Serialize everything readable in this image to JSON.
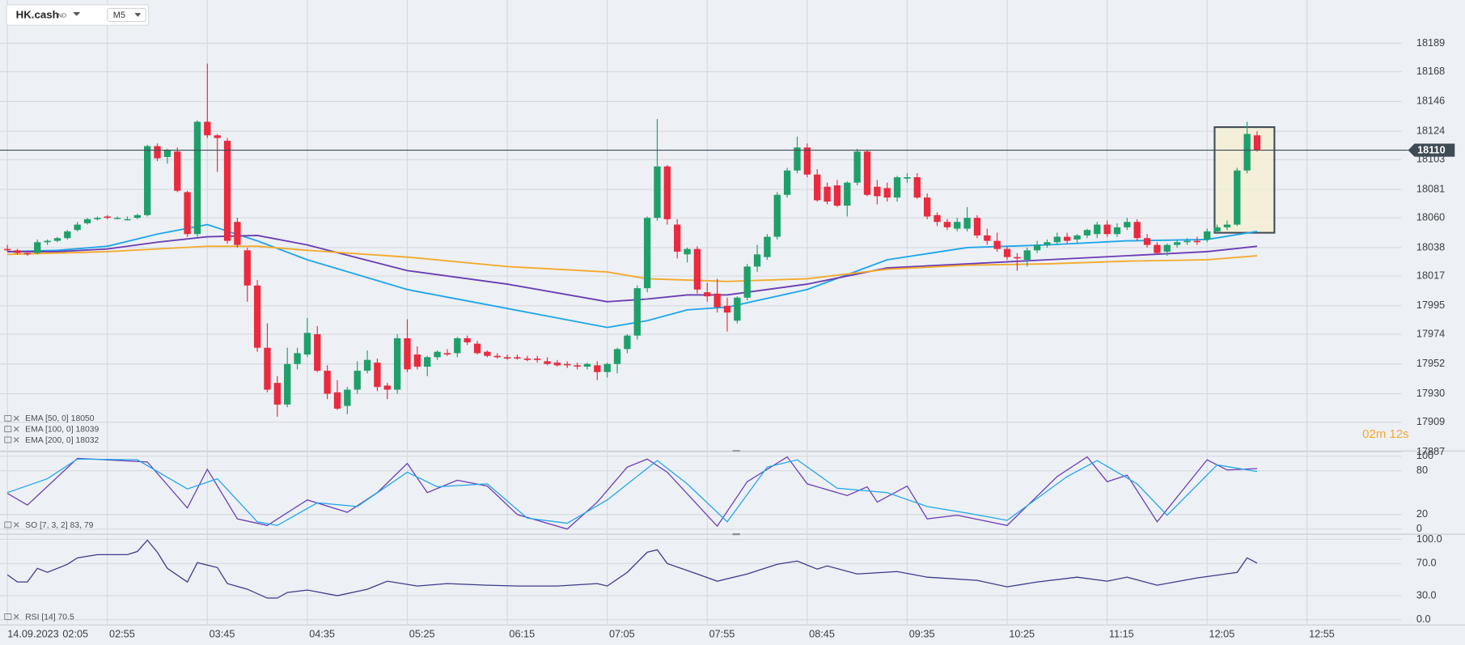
{
  "header": {
    "symbol": "HK.cash",
    "market": "IND",
    "timeframe": "M5"
  },
  "countdown": "02m 12s",
  "chart_data": [
    {
      "type": "candlestick",
      "date": "14.09.2023",
      "x": [
        125,
        130,
        135,
        140,
        145,
        150,
        155,
        160,
        165,
        170,
        175,
        180,
        185,
        190,
        195,
        200,
        205,
        210,
        215,
        220,
        225,
        230,
        235,
        240,
        245,
        250,
        255,
        260,
        265,
        270,
        275,
        280,
        285,
        290,
        295,
        300,
        305,
        310,
        315,
        320,
        325,
        330,
        335,
        340,
        345,
        350,
        355,
        360,
        365,
        370,
        375,
        380,
        385,
        390,
        395,
        400,
        405,
        410,
        415,
        420,
        425,
        430,
        435,
        440,
        445,
        450,
        455,
        460,
        465,
        470,
        475,
        480,
        485,
        490,
        495,
        500,
        505,
        510,
        515,
        520,
        525,
        530,
        535,
        540,
        545,
        550,
        555,
        560,
        565,
        570,
        575,
        580,
        585,
        590,
        595,
        600,
        605,
        610,
        615,
        620,
        625,
        630,
        635,
        640,
        645,
        650,
        655,
        660,
        665,
        670,
        675,
        680,
        685,
        690,
        695,
        700,
        705,
        710,
        715,
        720,
        725,
        730,
        735,
        740,
        745,
        750
      ],
      "open": [
        18037,
        18036,
        18034,
        18034,
        18042,
        18043,
        18045,
        18051,
        18056,
        18059,
        18061,
        18060,
        18059,
        18060,
        18062,
        18113,
        18105,
        18109,
        18079,
        18048,
        18131,
        18121,
        18117,
        18057,
        18036,
        18010,
        17964,
        17938,
        17922,
        17952,
        17959,
        17974,
        17947,
        17931,
        17921,
        17933,
        17947,
        17953,
        17936,
        17933,
        17971,
        17959,
        17950,
        17957,
        17960,
        17960,
        17971,
        17967,
        17961,
        17958,
        17957,
        17957,
        17956,
        17956,
        17954,
        17953,
        17952,
        17951,
        17950,
        17951,
        17946,
        17952,
        17963,
        17973,
        18008,
        18060,
        18098,
        18055,
        18033,
        18037,
        18005,
        18004,
        17995,
        17984,
        18001,
        18024,
        18031,
        18046,
        18077,
        18095,
        18112,
        18092,
        18083,
        18084,
        18069,
        18086,
        18109,
        18083,
        18082,
        18075,
        18089,
        18090,
        18075,
        18062,
        18057,
        18052,
        18052,
        18060,
        18047,
        18043,
        18037,
        18031,
        18029,
        18036,
        18040,
        18042,
        18046,
        18044,
        18047,
        18048,
        18055,
        18048,
        18053,
        18057,
        18045,
        18040,
        18035,
        18040,
        18042,
        18043,
        18044,
        18050,
        18053,
        18055,
        18095,
        18121
      ],
      "high": [
        18040,
        18037,
        18036,
        18044,
        18044,
        18046,
        18051,
        18057,
        18060,
        18061,
        18062,
        18061,
        18061,
        18063,
        18114,
        18115,
        18111,
        18112,
        18080,
        18132,
        18174,
        18122,
        18119,
        18060,
        18038,
        18014,
        17982,
        17943,
        17964,
        17964,
        17986,
        17980,
        17951,
        17940,
        17935,
        17954,
        17962,
        17956,
        17938,
        17974,
        17985,
        17965,
        17958,
        17962,
        17963,
        17972,
        17973,
        17969,
        17962,
        17960,
        17959,
        17959,
        17958,
        17958,
        17957,
        17955,
        17954,
        17953,
        17953,
        17954,
        17953,
        17964,
        17974,
        18010,
        18061,
        18133,
        18099,
        18059,
        18038,
        18039,
        18012,
        18015,
        18001,
        18002,
        18026,
        18040,
        18048,
        18079,
        18097,
        18120,
        18115,
        18096,
        18086,
        18088,
        18087,
        18111,
        18110,
        18088,
        18086,
        18091,
        18093,
        18093,
        18078,
        18064,
        18059,
        18060,
        18068,
        18062,
        18052,
        18049,
        18039,
        18034,
        18038,
        18043,
        18044,
        18049,
        18049,
        18048,
        18052,
        18057,
        18058,
        18056,
        18060,
        18059,
        18048,
        18042,
        18041,
        18044,
        18045,
        18046,
        18052,
        18055,
        18058,
        18097,
        18131,
        18124
      ],
      "low": [
        18035,
        18033,
        18032,
        18033,
        18040,
        18042,
        18044,
        18050,
        18055,
        18058,
        18059,
        18059,
        18058,
        18059,
        18061,
        18102,
        18100,
        18079,
        18046,
        18046,
        18119,
        18094,
        18041,
        18038,
        17998,
        17961,
        17931,
        17913,
        17920,
        17948,
        17957,
        17946,
        17926,
        17918,
        17915,
        17930,
        17945,
        17932,
        17926,
        17930,
        17946,
        17948,
        17943,
        17955,
        17958,
        17957,
        17966,
        17959,
        17957,
        17956,
        17955,
        17955,
        17954,
        17953,
        17951,
        17950,
        17949,
        17948,
        17948,
        17940,
        17942,
        17945,
        17960,
        17970,
        18005,
        18058,
        18055,
        18030,
        18027,
        18004,
        17998,
        17990,
        17976,
        17982,
        17999,
        18020,
        18029,
        18044,
        18075,
        18093,
        18090,
        18072,
        18070,
        18068,
        18061,
        18084,
        18076,
        18070,
        18072,
        18072,
        18086,
        18074,
        18059,
        18054,
        18051,
        18050,
        18050,
        18045,
        18040,
        18035,
        18029,
        18021,
        18024,
        18034,
        18038,
        18040,
        18041,
        18041,
        18045,
        18045,
        18046,
        18046,
        18051,
        18043,
        18038,
        18033,
        18032,
        18038,
        18040,
        18040,
        18042,
        18048,
        18051,
        18054,
        18093,
        18109
      ],
      "close": [
        18036,
        18034,
        18033,
        18042,
        18043,
        18045,
        18050,
        18055,
        18059,
        18060,
        18060,
        18060,
        18059,
        18062,
        18113,
        18104,
        18110,
        18080,
        18048,
        18131,
        18121,
        18119,
        18043,
        18040,
        18010,
        17964,
        17933,
        17922,
        17952,
        17960,
        17975,
        17947,
        17930,
        17919,
        17933,
        17947,
        17955,
        17935,
        17933,
        17971,
        17948,
        17950,
        17957,
        17961,
        17959,
        17971,
        17968,
        17960,
        17958,
        17957,
        17956,
        17956,
        17955,
        17955,
        17952,
        17951,
        17951,
        17950,
        17952,
        17946,
        17952,
        17963,
        17973,
        18008,
        18060,
        18098,
        18059,
        18035,
        18037,
        18007,
        18002,
        17994,
        17990,
        18001,
        18024,
        18033,
        18046,
        18077,
        18095,
        18112,
        18092,
        18073,
        18072,
        18069,
        18086,
        18109,
        18077,
        18076,
        18075,
        18090,
        18090,
        18075,
        18061,
        18057,
        18053,
        18057,
        18060,
        18047,
        18043,
        18037,
        18031,
        18030,
        18036,
        18040,
        18042,
        18046,
        18043,
        18047,
        18051,
        18055,
        18048,
        18053,
        18057,
        18045,
        18040,
        18034,
        18040,
        18042,
        18043,
        18042,
        18050,
        18053,
        18055,
        18095,
        18122,
        18110
      ],
      "up_color": "#1fa06a",
      "down_color": "#ea2a3f",
      "last_price": 18110,
      "xlim": [
        121.3,
        822.2
      ],
      "xticks": [
        {
          "value": 125,
          "label": "02:05"
        },
        {
          "value": 175,
          "label": "02:55"
        },
        {
          "value": 225,
          "label": "03:45"
        },
        {
          "value": 275,
          "label": "04:35"
        },
        {
          "value": 325,
          "label": "05:25"
        },
        {
          "value": 375,
          "label": "06:15"
        },
        {
          "value": 425,
          "label": "07:05"
        },
        {
          "value": 475,
          "label": "07:55"
        },
        {
          "value": 525,
          "label": "08:45"
        },
        {
          "value": 575,
          "label": "09:35"
        },
        {
          "value": 625,
          "label": "10:25"
        },
        {
          "value": 675,
          "label": "11:15"
        },
        {
          "value": 725,
          "label": "12:05"
        },
        {
          "value": 775,
          "label": "12:55"
        }
      ],
      "ylim": [
        17888,
        18221
      ],
      "yticks": [
        18189,
        18168,
        18146,
        18124,
        18103,
        18081,
        18060,
        18038,
        18017,
        17995,
        17974,
        17952,
        17930,
        17909,
        17887
      ],
      "grid": true,
      "series": [
        {
          "name": "EMA [50, 0] 18050",
          "color": "#1da6ea",
          "x": [
            125,
            150,
            175,
            200,
            225,
            250,
            275,
            325,
            375,
            425,
            445,
            465,
            485,
            525,
            565,
            605,
            645,
            685,
            725,
            750
          ],
          "values": [
            18035,
            18036,
            18039,
            18048,
            18055,
            18043,
            18029,
            18007,
            17993,
            17979,
            17984,
            17992,
            17994,
            18007,
            18029,
            18038,
            18040,
            18043,
            18044,
            18050
          ]
        },
        {
          "name": "EMA [100, 0] 18039",
          "color": "#6a3cb4",
          "x": [
            125,
            150,
            175,
            200,
            225,
            250,
            275,
            325,
            375,
            425,
            445,
            465,
            485,
            525,
            565,
            605,
            645,
            685,
            725,
            750
          ],
          "values": [
            18035,
            18035,
            18037,
            18042,
            18046,
            18047,
            18040,
            18021,
            18011,
            17998,
            18000,
            18003,
            18003,
            18011,
            18023,
            18026,
            18029,
            18032,
            18035,
            18039
          ]
        },
        {
          "name": "EMA [200, 0] 18032",
          "color": "#f4a92a",
          "x": [
            125,
            150,
            175,
            200,
            225,
            250,
            275,
            325,
            375,
            425,
            445,
            465,
            485,
            525,
            565,
            605,
            645,
            685,
            725,
            750
          ],
          "values": [
            18033,
            18034,
            18035,
            18037,
            18039,
            18039,
            18036,
            18031,
            18024,
            18020,
            18015,
            18014,
            18013,
            18015,
            18022,
            18025,
            18026,
            18028,
            18029,
            18032
          ]
        }
      ]
    },
    {
      "type": "line",
      "legend": "SO [7, 3, 2] 83, 79",
      "xlim": [
        121.3,
        822.2
      ],
      "ylim": [
        -5,
        106
      ],
      "yticks": [
        0,
        20,
        80,
        100
      ],
      "grid": true,
      "series": [
        {
          "color": "#6a3cb4",
          "x": [
            125,
            135,
            160,
            195,
            215,
            225,
            240,
            255,
            275,
            295,
            310,
            325,
            335,
            350,
            365,
            380,
            405,
            420,
            435,
            445,
            455,
            480,
            495,
            515,
            525,
            545,
            555,
            560,
            575,
            585,
            600,
            625,
            650,
            665,
            675,
            685,
            700,
            725,
            735,
            750
          ],
          "values": [
            49,
            33,
            97,
            92,
            29,
            82,
            14,
            5,
            40,
            23,
            50,
            90,
            50,
            67,
            59,
            20,
            0,
            37,
            85,
            96,
            78,
            4,
            65,
            99,
            62,
            46,
            58,
            37,
            59,
            14,
            19,
            5,
            72,
            99,
            65,
            74,
            10,
            95,
            81,
            83
          ]
        },
        {
          "color": "#1da6ea",
          "x": [
            125,
            145,
            160,
            190,
            215,
            230,
            250,
            260,
            280,
            300,
            325,
            340,
            365,
            385,
            405,
            425,
            450,
            465,
            485,
            505,
            520,
            540,
            565,
            585,
            605,
            625,
            655,
            670,
            690,
            705,
            730,
            750
          ],
          "values": [
            50,
            69,
            96,
            95,
            55,
            69,
            10,
            5,
            36,
            31,
            78,
            58,
            62,
            15,
            8,
            40,
            94,
            62,
            10,
            85,
            95,
            56,
            50,
            31,
            22,
            12,
            72,
            94,
            62,
            19,
            88,
            79
          ]
        }
      ]
    },
    {
      "type": "line",
      "legend": "RSI [14] 70.5",
      "xlim": [
        121.3,
        822.2
      ],
      "ylim": [
        -6,
        105
      ],
      "yticks": [
        {
          "value": 100,
          "label": "100.0"
        },
        {
          "value": 70,
          "label": "70.0"
        },
        {
          "value": 30,
          "label": "30.0"
        },
        {
          "value": 0,
          "label": "0.0"
        }
      ],
      "grid": true,
      "series": [
        {
          "color": "#3b3a8a",
          "x": [
            125,
            130,
            135,
            140,
            145,
            155,
            160,
            170,
            185,
            190,
            195,
            200,
            205,
            215,
            220,
            230,
            235,
            245,
            255,
            260,
            265,
            275,
            290,
            305,
            315,
            330,
            345,
            365,
            380,
            400,
            420,
            425,
            435,
            445,
            450,
            455,
            470,
            480,
            495,
            510,
            520,
            530,
            535,
            550,
            570,
            585,
            610,
            625,
            640,
            660,
            675,
            685,
            700,
            720,
            740,
            745,
            750
          ],
          "values": [
            56,
            47,
            47,
            64,
            59,
            69,
            77,
            81,
            81,
            85,
            99,
            84,
            64,
            47,
            71,
            65,
            45,
            38,
            27,
            27,
            34,
            37,
            30,
            38,
            48,
            42,
            45,
            43,
            42,
            42,
            45,
            42,
            59,
            84,
            87,
            70,
            57,
            48,
            57,
            69,
            73,
            63,
            67,
            57,
            60,
            53,
            49,
            41,
            47,
            53,
            48,
            53,
            43,
            52,
            59,
            77,
            70.5
          ]
        }
      ]
    }
  ]
}
